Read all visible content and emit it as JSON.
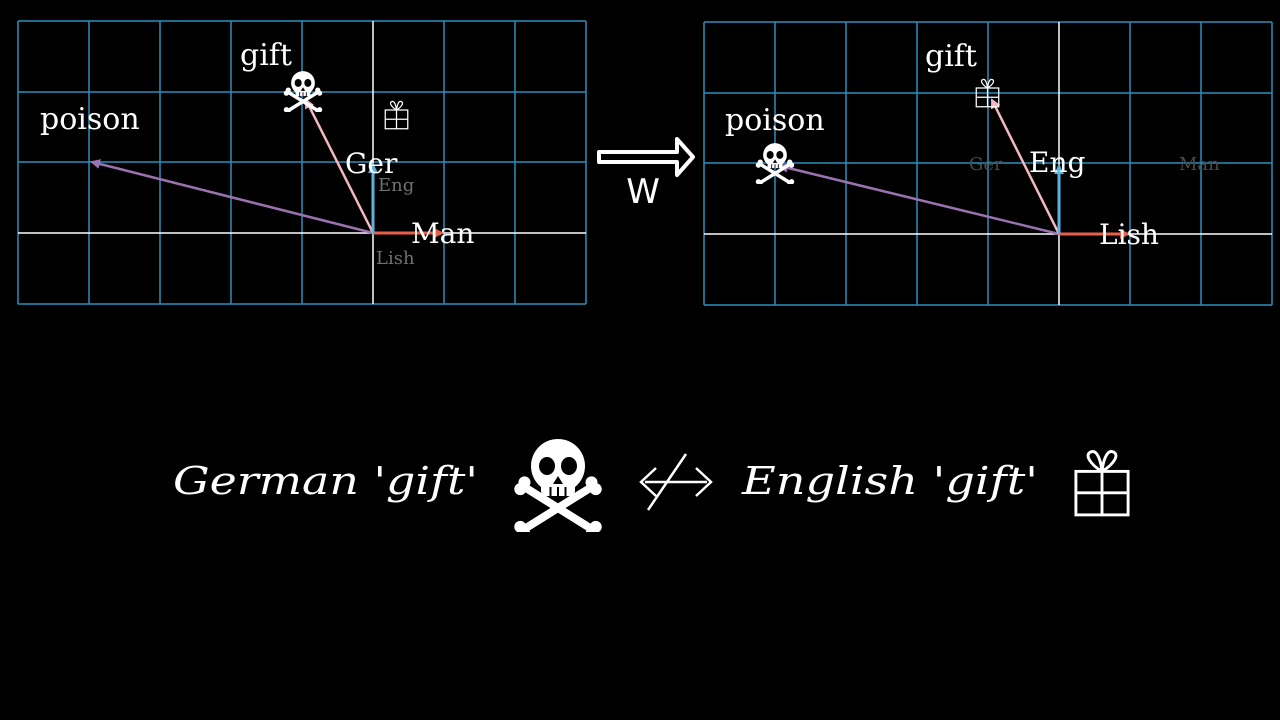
{
  "colors": {
    "background": "#000000",
    "grid": "#2a8fbd",
    "axis": "#ffffff",
    "poison_vector": "#9a72b0",
    "gift_vector": "#f4b8c0",
    "basis_x": "#e8604a",
    "basis_y": "#5ab4de",
    "label_bright": "#ffffff",
    "label_dim": "#707070",
    "label_faint": "#4a4a4a"
  },
  "icons": {
    "poison": "skull-crossbones-icon",
    "gift": "gift-box-icon"
  },
  "left_panel": {
    "labels": {
      "poison": "poison",
      "gift": "gift",
      "basis_x_bright": "Man",
      "basis_y_bright": "Ger",
      "basis_x_dim": "Lish",
      "basis_y_dim": "Eng"
    },
    "poison_vector": [
      -4,
      1
    ],
    "gift_vector": [
      -1,
      2
    ],
    "basis_x": [
      1,
      0
    ],
    "basis_y": [
      0,
      1
    ]
  },
  "transform": {
    "label": "W"
  },
  "right_panel": {
    "labels": {
      "poison": "poison",
      "gift": "gift",
      "basis_x_bright": "Lish",
      "basis_y_bright": "Eng",
      "basis_x_faint": "Man",
      "basis_y_faint": "Ger"
    },
    "poison_vector": [
      -4,
      1
    ],
    "gift_vector": [
      -1,
      2
    ],
    "basis_x": [
      1,
      0
    ],
    "basis_y": [
      0,
      1
    ]
  },
  "equation": {
    "left_term": "German 'gift'",
    "relation_symbol": "⇹",
    "right_term": "English 'gift'"
  }
}
